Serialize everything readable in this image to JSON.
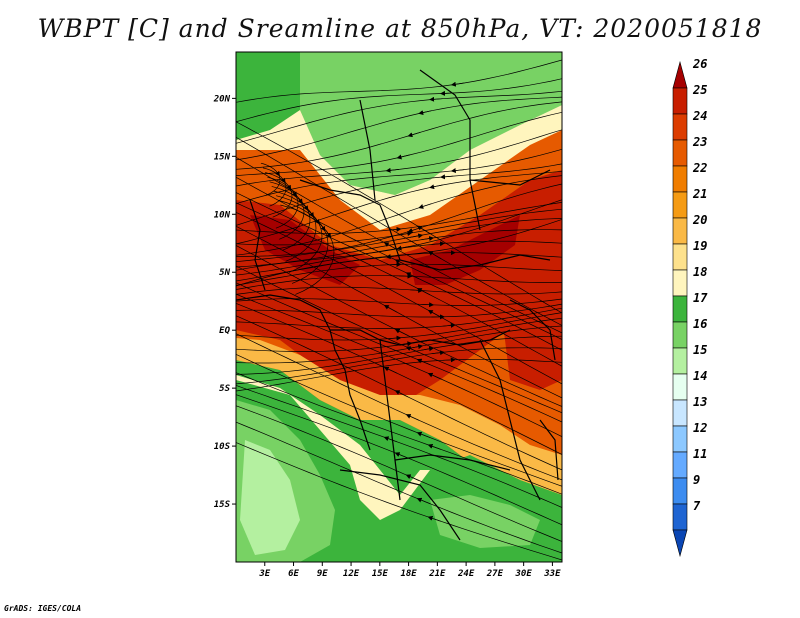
{
  "title": "WBPT [C] and Sreamline at 850hPa, VT: 2020051818",
  "credit": "GrADS: IGES/COLA",
  "map": {
    "lon_range": [
      0,
      34
    ],
    "lat_range": [
      -20,
      24
    ],
    "lon_ticks": [
      "3E",
      "6E",
      "9E",
      "12E",
      "15E",
      "18E",
      "21E",
      "24E",
      "27E",
      "30E",
      "33E"
    ],
    "lat_ticks": [
      "20N",
      "15N",
      "10N",
      "5N",
      "EQ",
      "5S",
      "10S",
      "15S"
    ]
  },
  "colorbar": {
    "levels": [
      "26",
      "25",
      "24",
      "23",
      "22",
      "21",
      "20",
      "19",
      "18",
      "17",
      "16",
      "15",
      "14",
      "13",
      "12",
      "11",
      "9",
      "7"
    ],
    "colors": [
      "#a50000",
      "#c81e00",
      "#dc3c00",
      "#e65a00",
      "#f07d00",
      "#f59b14",
      "#fab946",
      "#fde18c",
      "#fff5be",
      "#3cb43c",
      "#78d264",
      "#b4f0a0",
      "#e6fff0",
      "#c8e6ff",
      "#8cc8ff",
      "#64aaff",
      "#3c8cf0",
      "#1e64d2",
      "#0a46b4"
    ]
  },
  "legend_colors": {
    "green_dark": "#3cb43c",
    "green_mid": "#78d264",
    "green_light": "#b4f0a0",
    "pale": "#fff5be",
    "yellow": "#fde18c",
    "orange_light": "#fab946",
    "orange": "#f07d00",
    "red_orange": "#e65a00",
    "red": "#c81e00",
    "dark_red": "#a50000"
  }
}
